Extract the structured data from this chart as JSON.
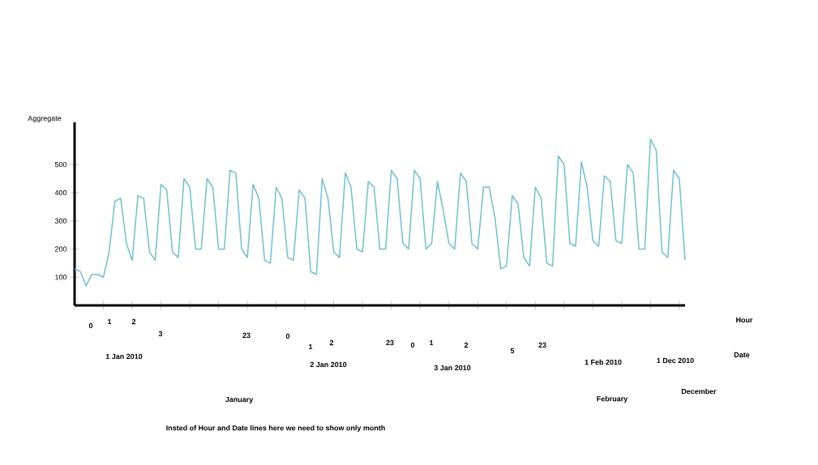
{
  "chart_data": {
    "type": "line",
    "ylabel": "Aggregate",
    "categories": [
      null,
      null,
      null,
      null,
      null,
      null,
      null,
      null,
      null,
      null,
      null,
      null,
      null,
      null,
      null,
      null,
      null,
      null,
      null,
      null,
      null,
      null,
      null,
      null,
      null,
      null,
      null,
      null,
      null,
      null,
      null,
      null,
      null,
      null,
      null,
      null,
      null,
      null,
      null,
      null,
      null,
      null,
      null,
      null,
      null,
      null,
      null,
      null,
      null,
      null,
      null,
      null,
      null,
      null,
      null,
      null,
      null,
      null,
      null,
      null,
      null,
      null,
      null,
      null,
      null,
      null,
      null,
      null,
      null,
      null,
      null,
      null,
      null,
      null,
      null,
      null,
      null,
      null,
      null,
      null,
      null,
      null,
      null,
      null,
      null,
      null,
      null,
      null,
      null,
      null,
      null,
      null,
      null,
      null,
      null,
      null,
      null,
      null,
      null,
      null,
      null,
      null,
      null,
      null,
      null,
      null,
      null
    ],
    "values": [
      130,
      120,
      70,
      110,
      110,
      100,
      190,
      370,
      380,
      220,
      160,
      390,
      380,
      190,
      160,
      430,
      410,
      190,
      170,
      450,
      420,
      200,
      200,
      450,
      420,
      200,
      200,
      480,
      470,
      200,
      170,
      430,
      380,
      160,
      150,
      420,
      380,
      170,
      160,
      410,
      380,
      120,
      110,
      450,
      380,
      190,
      170,
      470,
      420,
      200,
      190,
      440,
      420,
      200,
      200,
      480,
      450,
      220,
      200,
      480,
      450,
      200,
      220,
      440,
      340,
      220,
      200,
      470,
      440,
      220,
      200,
      420,
      420,
      310,
      130,
      140,
      390,
      360,
      170,
      140,
      420,
      380,
      150,
      140,
      530,
      500,
      220,
      210,
      510,
      420,
      230,
      210,
      460,
      440,
      230,
      220,
      500,
      470,
      200,
      200,
      590,
      550,
      190,
      170,
      480,
      450,
      160
    ],
    "color": "#6cc0d0",
    "ylim": [
      0,
      650
    ],
    "yticks": [
      100,
      200,
      300,
      400,
      500
    ],
    "marker": "none",
    "line_style": "solid",
    "annotations": [
      "0",
      "1",
      "2",
      "3",
      "23",
      "1 Jan 2010",
      "0",
      "1",
      "2",
      "23",
      "2 Jan 2010",
      "0",
      "1",
      "2",
      "5",
      "23",
      "3 Jan 2010",
      "1 Feb 2010",
      "1 Dec 2010",
      "January",
      "February",
      "December",
      "Hour",
      "Date",
      "Insted of Hour and Date lines here we need to show only month"
    ]
  }
}
